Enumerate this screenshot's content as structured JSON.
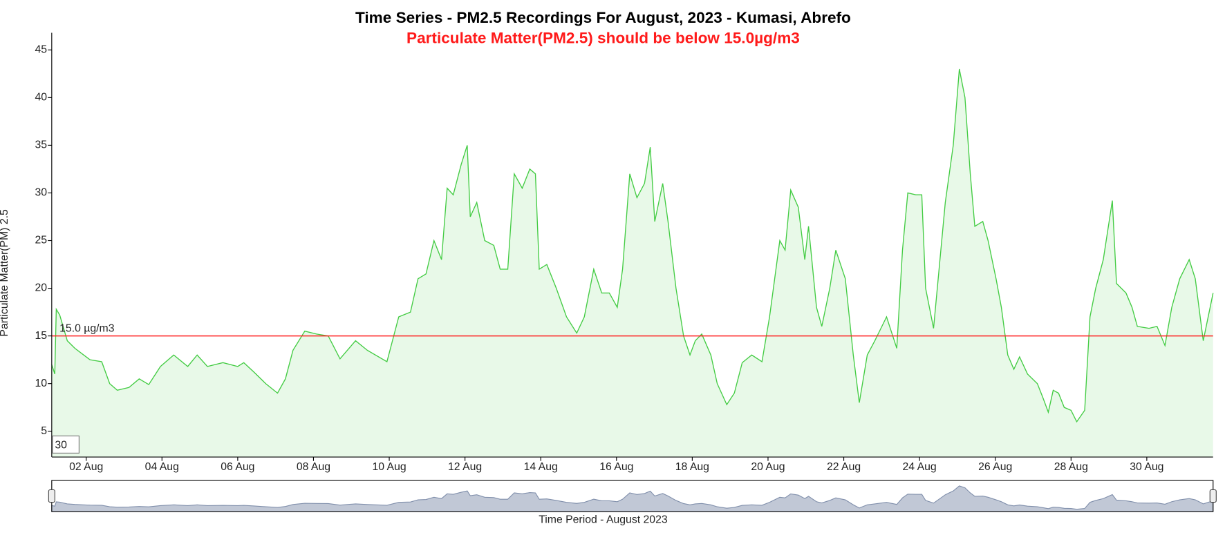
{
  "chart_data": {
    "type": "line",
    "title": "Time Series - PM2.5 Recordings For August, 2023 - Kumasi, Abrefo",
    "subtitle": "Particulate Matter(PM2.5) should be below 15.0µg/m3",
    "y_label": "Particulate Matter(PM) 2.5",
    "x_label": "Time Period - August 2023",
    "roll_period": 30,
    "xlim": [
      1.09,
      31.75
    ],
    "ylim": [
      2.3,
      46.8
    ],
    "xticks": [
      {
        "value": 2,
        "label": "02 Aug"
      },
      {
        "value": 4,
        "label": "04 Aug"
      },
      {
        "value": 6,
        "label": "06 Aug"
      },
      {
        "value": 8,
        "label": "08 Aug"
      },
      {
        "value": 10,
        "label": "10 Aug"
      },
      {
        "value": 12,
        "label": "12 Aug"
      },
      {
        "value": 14,
        "label": "14 Aug"
      },
      {
        "value": 16,
        "label": "16 Aug"
      },
      {
        "value": 18,
        "label": "18 Aug"
      },
      {
        "value": 20,
        "label": "20 Aug"
      },
      {
        "value": 22,
        "label": "22 Aug"
      },
      {
        "value": 24,
        "label": "24 Aug"
      },
      {
        "value": 26,
        "label": "26 Aug"
      },
      {
        "value": 28,
        "label": "28 Aug"
      },
      {
        "value": 30,
        "label": "30 Aug"
      }
    ],
    "yticks": [
      5,
      10,
      15,
      20,
      25,
      30,
      35,
      40,
      45
    ],
    "grid": false,
    "fill": true,
    "threshold": {
      "value": 15,
      "label": "15.0 µg/m3",
      "color": "#ff2020"
    },
    "x": [
      1.09,
      1.17,
      1.21,
      1.3,
      1.5,
      1.7,
      2.1,
      2.41,
      2.62,
      2.82,
      3.13,
      3.4,
      3.65,
      3.96,
      4.31,
      4.68,
      4.93,
      5.2,
      5.61,
      6.0,
      6.16,
      6.43,
      6.74,
      7.05,
      7.26,
      7.46,
      7.77,
      8.08,
      8.39,
      8.7,
      9.11,
      9.42,
      9.94,
      10.25,
      10.56,
      10.76,
      10.97,
      11.18,
      11.38,
      11.53,
      11.69,
      11.9,
      12.06,
      12.14,
      12.31,
      12.52,
      12.76,
      12.93,
      13.13,
      13.3,
      13.51,
      13.71,
      13.86,
      13.96,
      14.16,
      14.41,
      14.68,
      14.95,
      15.15,
      15.4,
      15.61,
      15.81,
      16.02,
      16.16,
      16.35,
      16.54,
      16.74,
      16.89,
      17.01,
      17.22,
      17.36,
      17.57,
      17.77,
      17.94,
      18.08,
      18.25,
      18.49,
      18.66,
      18.91,
      19.11,
      19.32,
      19.57,
      19.84,
      20.04,
      20.31,
      20.45,
      20.6,
      20.8,
      20.97,
      21.07,
      21.28,
      21.42,
      21.63,
      21.79,
      22.04,
      22.25,
      22.41,
      22.62,
      22.82,
      23.13,
      23.4,
      23.55,
      23.69,
      23.9,
      24.06,
      24.16,
      24.37,
      24.68,
      24.89,
      25.05,
      25.2,
      25.34,
      25.46,
      25.67,
      25.81,
      26.02,
      26.16,
      26.33,
      26.49,
      26.64,
      26.85,
      27.11,
      27.26,
      27.4,
      27.53,
      27.67,
      27.82,
      28.0,
      28.15,
      28.36,
      28.5,
      28.65,
      28.85,
      29.09,
      29.2,
      29.45,
      29.61,
      29.75,
      30.06,
      30.27,
      30.48,
      30.66,
      30.87,
      31.12,
      31.28,
      31.49,
      31.75
    ],
    "series": [
      {
        "name": "PM2.5",
        "color": "#44cc44",
        "values": [
          12,
          11,
          17.8,
          17.2,
          14.5,
          13.7,
          12.5,
          12.3,
          10,
          9.3,
          9.6,
          10.5,
          9.9,
          11.8,
          13,
          11.8,
          13,
          11.8,
          12.2,
          11.8,
          12.2,
          11.2,
          10,
          9,
          10.5,
          13.5,
          15.5,
          15.2,
          15,
          12.6,
          14.5,
          13.5,
          12.3,
          17,
          17.5,
          21,
          21.5,
          25,
          23,
          30.5,
          29.8,
          33,
          35,
          27.5,
          29,
          25,
          24.5,
          22,
          22,
          32,
          30.5,
          32.5,
          32,
          22,
          22.5,
          20,
          17,
          15.3,
          17,
          22,
          19.5,
          19.5,
          18,
          22,
          32,
          29.5,
          31,
          34.8,
          27,
          31,
          27,
          20,
          15,
          13,
          14.5,
          15.2,
          13,
          10,
          7.8,
          9,
          12.2,
          13,
          12.3,
          17,
          25,
          24,
          30.3,
          28.5,
          23,
          26.5,
          18,
          16,
          20,
          24,
          21,
          13,
          8,
          13,
          14.5,
          17,
          13.7,
          24,
          30,
          29.8,
          29.8,
          20,
          15.8,
          29,
          35,
          43,
          40,
          32,
          26.5,
          27,
          25,
          21,
          18,
          13,
          11.5,
          12.8,
          11,
          10,
          8.5,
          7,
          9.3,
          9,
          7.5,
          7.2,
          6,
          7.2,
          17,
          20,
          23,
          29.2,
          20.5,
          19.5,
          18,
          16,
          15.8,
          16,
          14,
          18,
          21,
          23,
          21,
          14.5,
          19.5
        ]
      }
    ]
  }
}
